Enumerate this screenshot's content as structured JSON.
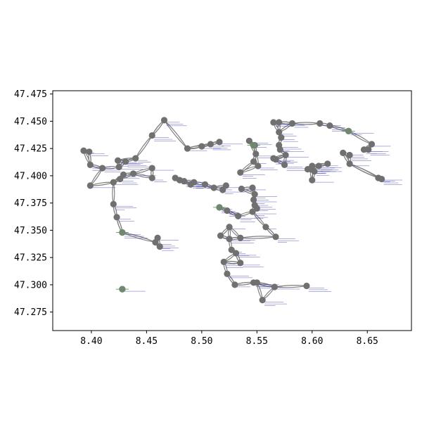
{
  "chart_data": {
    "type": "scatter",
    "title": "",
    "xlabel": "",
    "ylabel": "",
    "xlim": [
      8.365,
      8.69
    ],
    "ylim": [
      47.258,
      47.478
    ],
    "x_ticks": [
      "8.40",
      "8.45",
      "8.50",
      "8.55",
      "8.60",
      "8.65"
    ],
    "y_ticks": [
      "47.275",
      "47.300",
      "47.325",
      "47.350",
      "47.375",
      "47.400",
      "47.425",
      "47.450",
      "47.475"
    ],
    "grid": false,
    "legend": "none",
    "colors": {
      "node": "#707070",
      "edge": "#808080",
      "label": "#2a2aa8",
      "marker": "#2f8f2f"
    },
    "nodes": [
      [
        8.393,
        47.423
      ],
      [
        8.398,
        47.422
      ],
      [
        8.399,
        47.41
      ],
      [
        8.399,
        47.391
      ],
      [
        8.41,
        47.407
      ],
      [
        8.42,
        47.374
      ],
      [
        8.42,
        47.394
      ],
      [
        8.423,
        47.362
      ],
      [
        8.424,
        47.414
      ],
      [
        8.425,
        47.408
      ],
      [
        8.426,
        47.397
      ],
      [
        8.428,
        47.348
      ],
      [
        8.428,
        47.296
      ],
      [
        8.429,
        47.401
      ],
      [
        8.431,
        47.413
      ],
      [
        8.438,
        47.402
      ],
      [
        8.44,
        47.416
      ],
      [
        8.455,
        47.437
      ],
      [
        8.455,
        47.407
      ],
      [
        8.455,
        47.398
      ],
      [
        8.458,
        47.339
      ],
      [
        8.46,
        47.343
      ],
      [
        8.462,
        47.335
      ],
      [
        8.466,
        47.451
      ],
      [
        8.476,
        47.398
      ],
      [
        8.48,
        47.396
      ],
      [
        8.484,
        47.395
      ],
      [
        8.487,
        47.425
      ],
      [
        8.49,
        47.392
      ],
      [
        8.493,
        47.394
      ],
      [
        8.5,
        47.427
      ],
      [
        8.503,
        47.392
      ],
      [
        8.508,
        47.429
      ],
      [
        8.511,
        47.389
      ],
      [
        8.516,
        47.431
      ],
      [
        8.516,
        47.371
      ],
      [
        8.517,
        47.345
      ],
      [
        8.519,
        47.387
      ],
      [
        8.52,
        47.321
      ],
      [
        8.522,
        47.391
      ],
      [
        8.523,
        47.31
      ],
      [
        8.523,
        47.368
      ],
      [
        8.525,
        47.353
      ],
      [
        8.525,
        47.342
      ],
      [
        8.527,
        47.332
      ],
      [
        8.53,
        47.3
      ],
      [
        8.531,
        47.329
      ],
      [
        8.533,
        47.363
      ],
      [
        8.535,
        47.343
      ],
      [
        8.535,
        47.32
      ],
      [
        8.535,
        47.403
      ],
      [
        8.536,
        47.388
      ],
      [
        8.543,
        47.432
      ],
      [
        8.546,
        47.367
      ],
      [
        8.546,
        47.389
      ],
      [
        8.547,
        47.302
      ],
      [
        8.547,
        47.378
      ],
      [
        8.547,
        47.413
      ],
      [
        8.548,
        47.373
      ],
      [
        8.548,
        47.383
      ],
      [
        8.548,
        47.428
      ],
      [
        8.549,
        47.42
      ],
      [
        8.55,
        47.302
      ],
      [
        8.55,
        47.37
      ],
      [
        8.551,
        47.409
      ],
      [
        8.555,
        47.286
      ],
      [
        8.558,
        47.353
      ],
      [
        8.565,
        47.449
      ],
      [
        8.565,
        47.416
      ],
      [
        8.566,
        47.298
      ],
      [
        8.567,
        47.415
      ],
      [
        8.567,
        47.344
      ],
      [
        8.57,
        47.449
      ],
      [
        8.57,
        47.44
      ],
      [
        8.57,
        47.428
      ],
      [
        8.571,
        47.424
      ],
      [
        8.572,
        47.435
      ],
      [
        8.575,
        47.41
      ],
      [
        8.576,
        47.419
      ],
      [
        8.582,
        47.448
      ],
      [
        8.595,
        47.299
      ],
      [
        8.596,
        47.406
      ],
      [
        8.599,
        47.406
      ],
      [
        8.6,
        47.409
      ],
      [
        8.6,
        47.396
      ],
      [
        8.602,
        47.404
      ],
      [
        8.606,
        47.409
      ],
      [
        8.607,
        47.448
      ],
      [
        8.614,
        47.411
      ],
      [
        8.616,
        47.446
      ],
      [
        8.628,
        47.421
      ],
      [
        8.633,
        47.441
      ],
      [
        8.634,
        47.419
      ],
      [
        8.634,
        47.411
      ],
      [
        8.647,
        47.424
      ],
      [
        8.651,
        47.424
      ],
      [
        8.654,
        47.429
      ],
      [
        8.66,
        47.398
      ],
      [
        8.663,
        47.397
      ]
    ],
    "highlighted_nodes": [
      [
        8.547,
        47.428
      ],
      [
        8.516,
        47.371
      ],
      [
        8.633,
        47.441
      ],
      [
        8.428,
        47.348
      ],
      [
        8.428,
        47.296
      ]
    ]
  }
}
